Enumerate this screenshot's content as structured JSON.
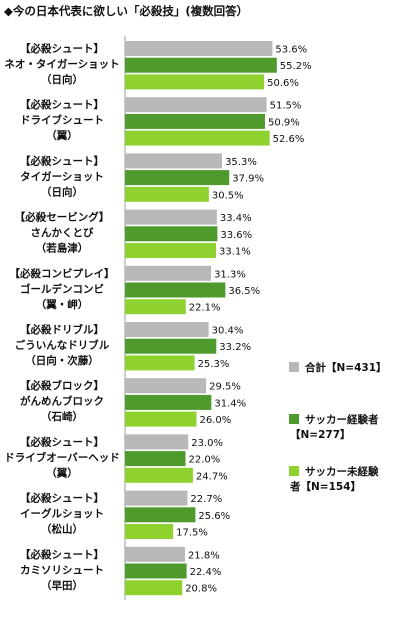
{
  "chart_data": {
    "type": "bar",
    "orientation": "horizontal",
    "title": "◆今の日本代表に欲しい「必殺技」(複数回答）",
    "categories": [
      [
        "【必殺シュート】",
        "ネオ・タイガーショット",
        "（日向）"
      ],
      [
        "【必殺シュート】",
        "ドライブシュート",
        "（翼）"
      ],
      [
        "【必殺シュート】",
        "タイガーショット",
        "（日向）"
      ],
      [
        "【必殺セービング】",
        "さんかくとび",
        "（若島津）"
      ],
      [
        "【必殺コンビプレイ】",
        "ゴールデンコンビ",
        "（翼・岬）"
      ],
      [
        "【必殺ドリブル】",
        "ごういんなドリブル",
        "（日向・次藤）"
      ],
      [
        "【必殺ブロック】",
        "がんめんブロック",
        "（石崎）"
      ],
      [
        "【必殺シュート】",
        "ドライブオーバーヘッド",
        "（翼）"
      ],
      [
        "【必殺シュート】",
        "イーグルショット",
        "（松山）"
      ],
      [
        "【必殺シュート】",
        "カミソリシュート",
        "（早田）"
      ]
    ],
    "series": [
      {
        "name": "合計【N=431】",
        "color": "#b8b8b8",
        "values": [
          53.6,
          51.5,
          35.3,
          33.4,
          31.3,
          30.4,
          29.5,
          23.0,
          22.7,
          21.8
        ]
      },
      {
        "name": "サッカー経験者【N=277】",
        "color": "#4e9a2c",
        "values": [
          55.2,
          50.9,
          37.9,
          33.6,
          36.5,
          33.2,
          31.4,
          22.0,
          25.6,
          22.4
        ]
      },
      {
        "name": "サッカー未経験者【N=154】",
        "color": "#8fd12e",
        "values": [
          50.6,
          52.6,
          30.5,
          33.1,
          22.1,
          25.3,
          26.0,
          24.7,
          17.5,
          20.8
        ]
      }
    ],
    "value_suffix": "%",
    "xlim": [
      0,
      60
    ],
    "grid": false,
    "legend": "right"
  }
}
